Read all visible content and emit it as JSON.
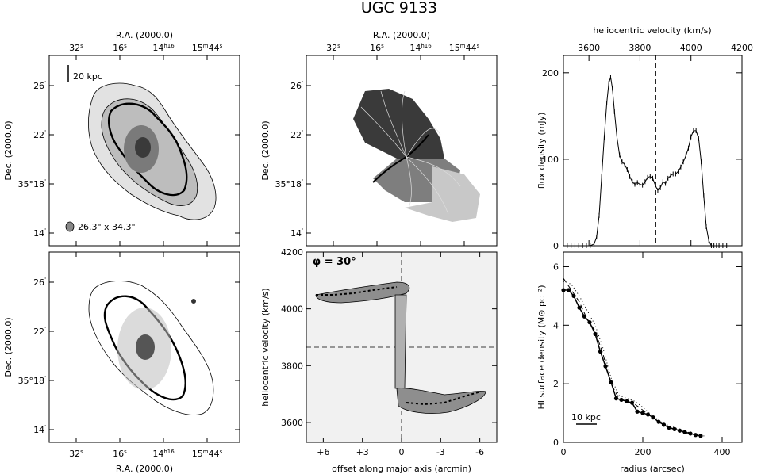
{
  "figure": {
    "title": "UGC 9133"
  },
  "colors": {
    "ink": "#000000",
    "gray_light": "#d8d8d8",
    "gray_mid": "#9a9a9a",
    "gray_dark": "#444444"
  },
  "panels": {
    "p1": {
      "top_xlabel": "R.A. (2000.0)",
      "ylabel": "Dec. (2000.0)",
      "ra_ticks": [
        "32",
        "16",
        "14",
        "15",
        "44"
      ],
      "ra_sup": [
        "s",
        "s",
        "h16",
        "m",
        "s"
      ],
      "dec_ticks": [
        "26",
        "22",
        "35°18",
        "14"
      ],
      "scalebar_label": "20 kpc",
      "beam_label": "26.3\" x 34.3\""
    },
    "p2": {
      "top_xlabel": "R.A. (2000.0)",
      "ylabel": "Dec. (2000.0)",
      "ra_ticks": [
        "32",
        "16",
        "14",
        "15",
        "44"
      ],
      "ra_sup": [
        "s",
        "s",
        "h16",
        "m",
        "s"
      ],
      "dec_ticks": [
        "26",
        "22",
        "35°18",
        "14"
      ]
    },
    "p4": {
      "xlabel": "R.A. (2000.0)",
      "ylabel": "Dec. (2000.0)",
      "ra_ticks": [
        "32",
        "16",
        "14",
        "15",
        "44"
      ],
      "ra_sup": [
        "s",
        "s",
        "h16",
        "m",
        "s"
      ],
      "dec_ticks": [
        "26",
        "22",
        "35°18",
        "14"
      ]
    },
    "p5": {
      "xlabel": "offset along major axis (arcmin)",
      "ylabel": "heliocentric velocity (km/s)",
      "annotation": "φ = 30°",
      "x_ticks": [
        "+6",
        "+3",
        "0",
        "-3",
        "-6"
      ],
      "y_ticks": [
        "4200",
        "4000",
        "3800",
        "3600"
      ]
    }
  },
  "chart_data": [
    {
      "type": "line",
      "title": "",
      "xlabel": "heliocentric velocity (km/s)",
      "ylabel": "flux density (mJy)",
      "xlim": [
        3500,
        4200
      ],
      "ylim": [
        0,
        220
      ],
      "x_ticks": [
        "3600",
        "3800",
        "4000",
        "4200"
      ],
      "y_ticks": [
        "0",
        "100",
        "200"
      ],
      "systemic_velocity": 3862,
      "x": [
        3515,
        3530,
        3545,
        3560,
        3575,
        3590,
        3605,
        3620,
        3630,
        3640,
        3650,
        3660,
        3670,
        3678,
        3685,
        3692,
        3700,
        3710,
        3720,
        3730,
        3740,
        3750,
        3760,
        3770,
        3780,
        3790,
        3800,
        3810,
        3820,
        3830,
        3840,
        3850,
        3860,
        3870,
        3880,
        3890,
        3900,
        3910,
        3920,
        3930,
        3940,
        3950,
        3960,
        3970,
        3980,
        3990,
        4000,
        4010,
        4020,
        4030,
        4040,
        4050,
        4060,
        4070,
        4080,
        4090,
        4100,
        4110,
        4125,
        4140
      ],
      "values": [
        0,
        0,
        0,
        0,
        0,
        0,
        0,
        2,
        10,
        35,
        80,
        125,
        165,
        188,
        195,
        182,
        155,
        125,
        105,
        97,
        94,
        88,
        80,
        74,
        71,
        73,
        71,
        70,
        74,
        79,
        80,
        78,
        70,
        64,
        67,
        74,
        72,
        78,
        81,
        83,
        83,
        86,
        91,
        97,
        104,
        113,
        126,
        133,
        133,
        124,
        97,
        58,
        22,
        6,
        0,
        0,
        0,
        0,
        0,
        0
      ]
    },
    {
      "type": "line",
      "title": "",
      "xlabel": "radius (arcsec)",
      "ylabel": "HI surface density (M⊙ pc⁻²)",
      "xlim": [
        0,
        450
      ],
      "ylim": [
        0,
        6.5
      ],
      "x_ticks": [
        "0",
        "200",
        "400"
      ],
      "y_ticks": [
        "0",
        "2",
        "4",
        "6"
      ],
      "scalebar_label": "10 kpc",
      "series": [
        {
          "x": [
            0,
            13,
            26,
            40,
            53,
            66,
            80,
            93,
            106,
            120,
            133,
            146,
            160,
            173,
            186,
            200,
            213,
            226,
            240,
            253,
            266,
            280,
            293,
            306,
            320,
            333,
            346
          ],
          "values": [
            5.2,
            5.2,
            5.0,
            4.6,
            4.3,
            4.1,
            3.7,
            3.1,
            2.6,
            2.05,
            1.5,
            1.45,
            1.4,
            1.35,
            1.05,
            1.0,
            0.95,
            0.85,
            0.7,
            0.6,
            0.5,
            0.45,
            0.4,
            0.35,
            0.3,
            0.25,
            0.22
          ]
        },
        {
          "x": [
            0,
            20,
            40,
            60,
            80,
            100,
            120,
            140,
            160,
            180,
            200,
            220,
            240,
            260,
            280,
            300,
            320,
            340,
            360
          ],
          "values": [
            5.5,
            5.4,
            5.0,
            4.5,
            4.0,
            3.2,
            2.2,
            1.6,
            1.5,
            1.4,
            1.2,
            0.95,
            0.75,
            0.6,
            0.5,
            0.4,
            0.32,
            0.26,
            0.2
          ]
        },
        {
          "x": [
            0,
            20,
            40,
            60,
            80,
            100,
            120,
            140,
            160,
            180,
            200,
            220,
            240,
            260,
            280,
            300,
            320
          ],
          "values": [
            5.6,
            5.2,
            4.8,
            4.2,
            3.8,
            3.0,
            2.0,
            1.5,
            1.4,
            1.3,
            1.1,
            0.9,
            0.7,
            0.55,
            0.45,
            0.35,
            0.25
          ]
        }
      ]
    }
  ]
}
